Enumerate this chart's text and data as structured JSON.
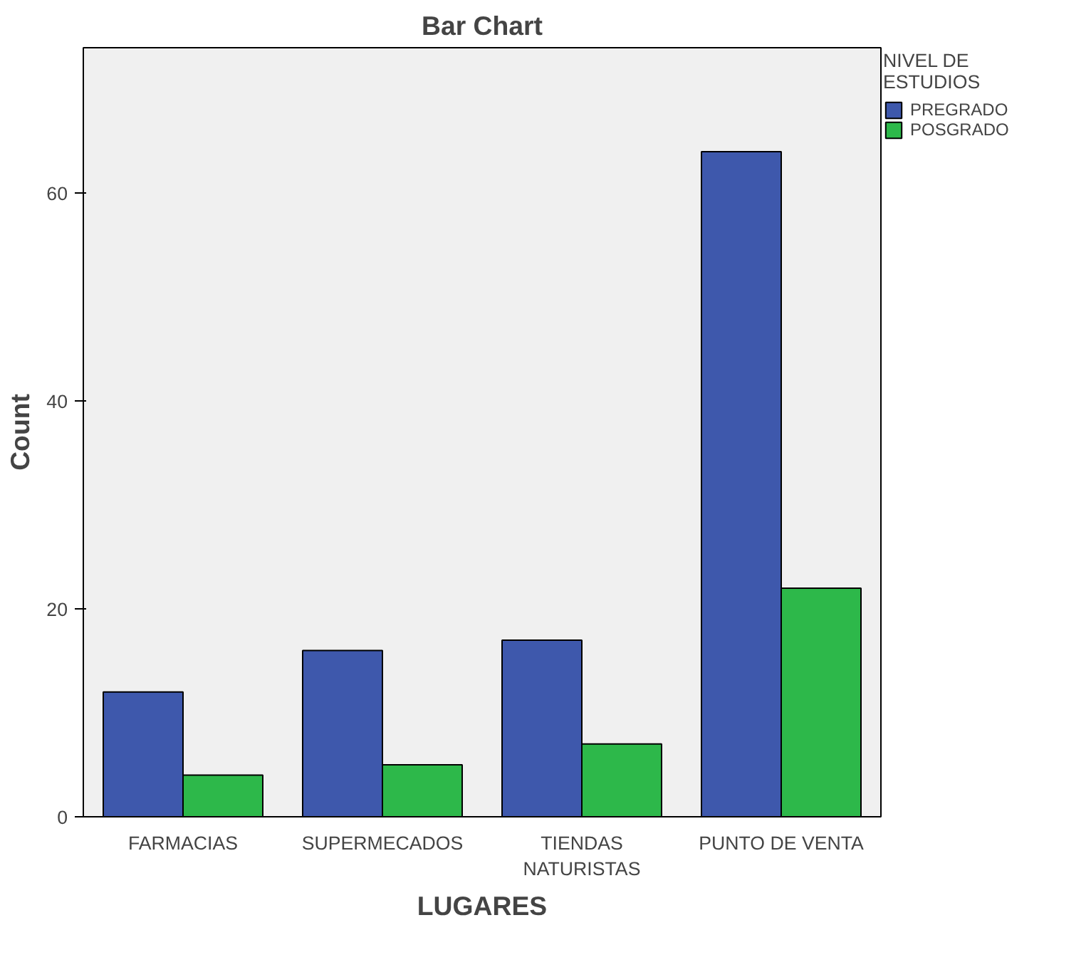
{
  "chart_data": {
    "type": "bar",
    "title": "Bar Chart",
    "xlabel": "LUGARES",
    "ylabel": "Count",
    "legend_title": "NIVEL DE\nESTUDIOS",
    "categories": [
      "FARMACIAS",
      "SUPERMECADOS",
      "TIENDAS\nNATURISTAS",
      "PUNTO DE VENTA"
    ],
    "series": [
      {
        "name": "PREGRADO",
        "color": "#3e58ac",
        "values": [
          12,
          16,
          17,
          64
        ]
      },
      {
        "name": "POSGRADO",
        "color": "#2db84a",
        "values": [
          4,
          5,
          7,
          22
        ]
      }
    ],
    "ylim": [
      0,
      74
    ],
    "yticks": [
      0,
      20,
      40,
      60
    ],
    "grid": false,
    "legend": "top right"
  }
}
